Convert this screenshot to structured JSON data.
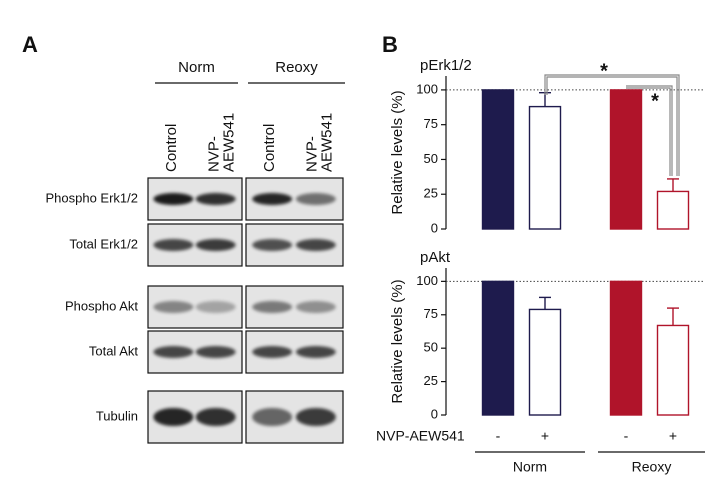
{
  "panel_a": {
    "label": "A",
    "groups": [
      {
        "name": "Norm",
        "lanes": [
          [
            "Control"
          ],
          [
            "NVP-",
            "AEW541"
          ]
        ]
      },
      {
        "name": "Reoxy",
        "lanes": [
          [
            "Control"
          ],
          [
            "NVP-",
            "AEW541"
          ]
        ]
      }
    ],
    "rows": [
      "Phospho Erk1/2",
      "Total Erk1/2",
      "Phospho Akt",
      "Total Akt",
      "Tubulin"
    ]
  },
  "panel_b": {
    "label": "B"
  },
  "chart_data": [
    {
      "type": "bar",
      "title": "pErk1/2",
      "ylabel": "Relative levels (%)",
      "values": [
        100,
        88,
        100,
        27
      ],
      "errors": [
        0,
        10,
        0,
        9
      ],
      "bar_colors": [
        "#1e1b4d",
        "#ffffff",
        "#b0142a",
        "#ffffff"
      ],
      "edge_colors": [
        "#1e1b4d",
        "#1e1b4d",
        "#b0142a",
        "#b0142a"
      ],
      "ylim": [
        0,
        110
      ],
      "yticks": [
        0,
        25,
        50,
        75,
        100
      ],
      "reference_line": 100,
      "annotations": [
        "*",
        "*"
      ]
    },
    {
      "type": "bar",
      "title": "pAkt",
      "ylabel": "Relative levels (%)",
      "values": [
        100,
        79,
        100,
        67
      ],
      "errors": [
        0,
        9,
        0,
        13
      ],
      "bar_colors": [
        "#1e1b4d",
        "#ffffff",
        "#b0142a",
        "#ffffff"
      ],
      "edge_colors": [
        "#1e1b4d",
        "#1e1b4d",
        "#b0142a",
        "#b0142a"
      ],
      "ylim": [
        0,
        110
      ],
      "yticks": [
        0,
        25,
        50,
        75,
        100
      ],
      "reference_line": 100,
      "treatment_label": "NVP-AEW541",
      "categories": [
        "-",
        "+",
        "-",
        "+"
      ],
      "groups": [
        "Norm",
        "Reoxy"
      ]
    }
  ]
}
